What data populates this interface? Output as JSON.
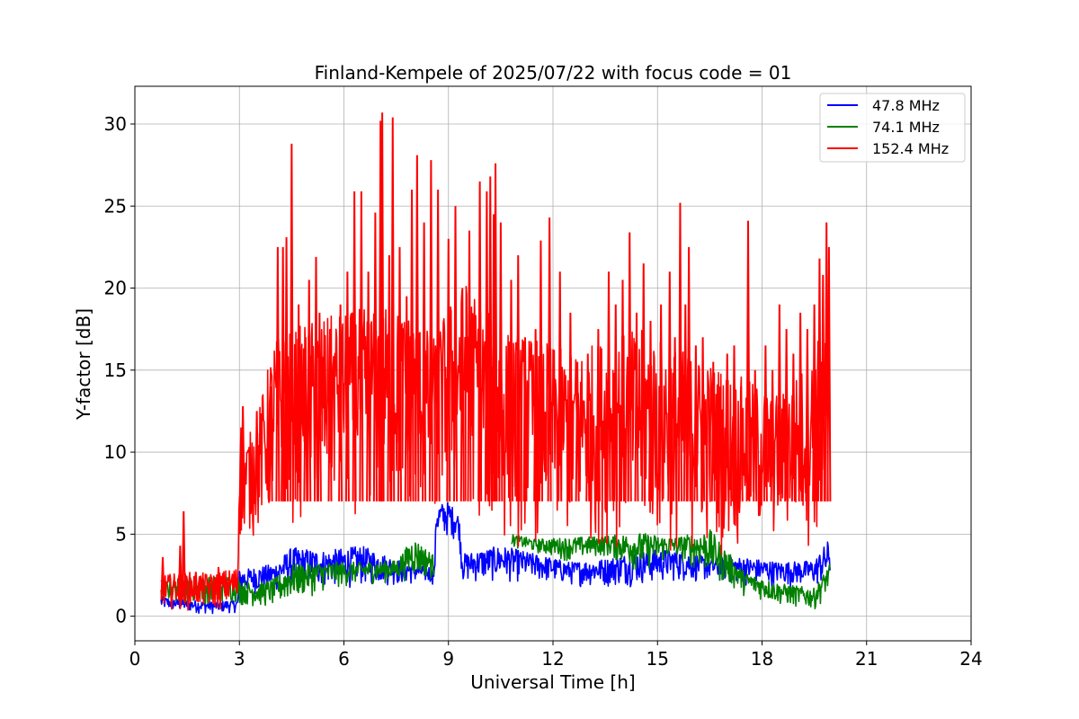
{
  "chart_data": {
    "type": "line",
    "title": "Finland-Kempele of 2025/07/22 with focus code = 01",
    "xlabel": "Universal Time [h]",
    "ylabel": "Y-factor [dB]",
    "xlim": [
      0,
      24
    ],
    "ylim": [
      -1.5,
      32.3
    ],
    "xticks": [
      0,
      3,
      6,
      9,
      12,
      15,
      18,
      21,
      24
    ],
    "xtick_labels": [
      "0",
      "3",
      "6",
      "9",
      "12",
      "15",
      "18",
      "21",
      "24"
    ],
    "yticks": [
      0,
      5,
      10,
      15,
      20,
      25,
      30
    ],
    "ytick_labels": [
      "0",
      "5",
      "10",
      "15",
      "20",
      "25",
      "30"
    ],
    "grid": true,
    "legend_position": "top-right",
    "series": [
      {
        "name": " 47.8 MHz",
        "color": "#0000ff",
        "segments": [
          {
            "x": [
              0.75,
              1.5,
              2.2,
              2.95,
              3.0,
              4.0,
              4.5,
              5.5,
              6.5,
              7.5,
              8.6,
              8.65,
              9.0,
              9.3,
              9.4,
              10.5,
              11.5,
              12.5,
              13.5,
              14.5,
              15.5,
              16.5,
              17.5,
              18.5,
              19.5,
              19.95
            ],
            "lo": [
              0.3,
              0.2,
              0.1,
              0.2,
              1.2,
              1.4,
              1.5,
              1.6,
              1.7,
              1.8,
              1.9,
              4.6,
              4.7,
              4.6,
              1.9,
              2.0,
              2.0,
              1.8,
              1.7,
              1.8,
              2.0,
              2.0,
              1.8,
              1.8,
              1.7,
              1.7
            ],
            "hi": [
              1.2,
              1.0,
              0.9,
              1.0,
              2.8,
              3.2,
              4.2,
              4.0,
              4.3,
              3.5,
              3.0,
              6.8,
              7.0,
              6.2,
              3.8,
              4.3,
              3.8,
              3.3,
              3.5,
              4.0,
              4.1,
              3.6,
              3.6,
              3.3,
              3.4,
              4.8
            ]
          }
        ]
      },
      {
        "name": " 74.1 MHz",
        "color": "#008000",
        "segments": [
          {
            "x": [
              0.75,
              1.5,
              2.2,
              2.95,
              3.0,
              3.5,
              4.0,
              4.5,
              5.5,
              6.5,
              7.5,
              8.0,
              8.6
            ],
            "lo": [
              0.8,
              0.7,
              0.7,
              0.7,
              0.6,
              0.5,
              0.4,
              0.8,
              1.5,
              1.9,
              2.0,
              2.2,
              2.2
            ],
            "hi": [
              2.1,
              2.4,
              2.4,
              2.5,
              2.2,
              2.0,
              2.3,
              3.2,
              3.3,
              3.3,
              3.4,
              4.8,
              3.7
            ]
          },
          {
            "x": [
              10.8,
              11.5,
              12.5,
              13.5,
              14.5,
              15.5,
              16.5,
              17.5,
              18.5,
              19.5,
              19.95
            ],
            "lo": [
              4.2,
              3.8,
              3.3,
              3.6,
              2.5,
              3.5,
              2.2,
              1.2,
              0.6,
              0.3,
              1.5
            ],
            "hi": [
              5.0,
              4.7,
              4.8,
              4.9,
              5.1,
              4.8,
              5.3,
              2.7,
              2.0,
              1.7,
              3.2
            ]
          }
        ]
      },
      {
        "name": "152.4 MHz",
        "color": "#ff0000",
        "segments": [
          {
            "x": [
              0.75,
              1.5,
              2.2,
              2.95,
              3.0,
              3.5,
              4.0,
              5.0,
              6.0,
              7.0,
              8.0,
              8.6,
              9.0,
              9.5,
              10.5,
              11.5,
              12.5,
              13.5,
              14.5,
              15.5,
              16.5,
              17.5,
              18.5,
              19.5,
              19.95
            ],
            "lo": [
              0.4,
              0.3,
              0.2,
              0.3,
              4.3,
              4.5,
              5.0,
              5.5,
              5.8,
              6.0,
              5.7,
              5.2,
              6.5,
              5.8,
              3.5,
              4.0,
              3.5,
              4.0,
              3.5,
              3.0,
              3.5,
              3.5,
              4.0,
              3.8,
              3.0
            ],
            "hi": [
              2.5,
              2.7,
              2.6,
              3.0,
              10.0,
              12.0,
              17.0,
              18.0,
              18.5,
              19.0,
              18.5,
              17.0,
              19.0,
              20.5,
              17.5,
              17.0,
              16.0,
              17.0,
              17.5,
              16.5,
              15.5,
              14.5,
              13.5,
              16.0,
              20.5
            ]
          },
          {
            "x": [
              19.97
            ],
            "lo": [
              6.0
            ],
            "hi": [
              20.5
            ]
          }
        ],
        "spikes": [
          [
            0.8,
            3.6
          ],
          [
            1.3,
            4.3
          ],
          [
            1.4,
            6.4
          ],
          [
            1.75,
            2.7
          ],
          [
            2.4,
            3.0
          ],
          [
            3.05,
            11.5
          ],
          [
            3.1,
            12.8
          ],
          [
            3.5,
            12.5
          ],
          [
            3.9,
            14.0
          ],
          [
            4.1,
            22.5
          ],
          [
            4.25,
            22.5
          ],
          [
            4.35,
            23.1
          ],
          [
            4.5,
            28.8
          ],
          [
            4.7,
            19.0
          ],
          [
            4.9,
            17.0
          ],
          [
            5.0,
            20.5
          ],
          [
            5.2,
            21.9
          ],
          [
            5.3,
            18.5
          ],
          [
            5.6,
            17.5
          ],
          [
            5.9,
            19.0
          ],
          [
            6.1,
            21.0
          ],
          [
            6.3,
            25.9
          ],
          [
            6.5,
            25.9
          ],
          [
            6.7,
            21.0
          ],
          [
            6.9,
            24.6
          ],
          [
            7.05,
            30.2
          ],
          [
            7.1,
            30.7
          ],
          [
            7.3,
            22.0
          ],
          [
            7.4,
            30.4
          ],
          [
            7.6,
            22.5
          ],
          [
            7.8,
            19.5
          ],
          [
            7.95,
            26.0
          ],
          [
            8.1,
            28.1
          ],
          [
            8.3,
            24.0
          ],
          [
            8.5,
            27.8
          ],
          [
            8.7,
            26.0
          ],
          [
            9.0,
            23.0
          ],
          [
            9.2,
            25.0
          ],
          [
            9.4,
            20.0
          ],
          [
            9.6,
            23.5
          ],
          [
            9.9,
            26.5
          ],
          [
            10.1,
            25.9
          ],
          [
            10.2,
            26.8
          ],
          [
            10.3,
            24.5
          ],
          [
            10.35,
            27.6
          ],
          [
            10.5,
            24.0
          ],
          [
            10.8,
            20.5
          ],
          [
            11.0,
            22.0
          ],
          [
            11.2,
            17.0
          ],
          [
            11.5,
            17.5
          ],
          [
            11.65,
            22.9
          ],
          [
            11.9,
            24.3
          ],
          [
            12.2,
            21.0
          ],
          [
            12.5,
            18.5
          ],
          [
            12.7,
            15.5
          ],
          [
            13.0,
            16.0
          ],
          [
            13.3,
            17.5
          ],
          [
            13.6,
            21.0
          ],
          [
            13.8,
            19.0
          ],
          [
            14.0,
            20.5
          ],
          [
            14.2,
            23.4
          ],
          [
            14.4,
            18.5
          ],
          [
            14.6,
            21.5
          ],
          [
            14.8,
            18.0
          ],
          [
            15.1,
            19.0
          ],
          [
            15.35,
            21.0
          ],
          [
            15.5,
            17.0
          ],
          [
            15.65,
            25.2
          ],
          [
            15.8,
            19.0
          ],
          [
            15.9,
            22.5
          ],
          [
            16.1,
            16.5
          ],
          [
            16.3,
            17.0
          ],
          [
            16.6,
            15.5
          ],
          [
            16.8,
            14.0
          ],
          [
            17.0,
            16.0
          ],
          [
            17.2,
            16.5
          ],
          [
            17.4,
            14.0
          ],
          [
            17.6,
            24.1
          ],
          [
            17.8,
            15.0
          ],
          [
            18.1,
            16.5
          ],
          [
            18.3,
            15.0
          ],
          [
            18.5,
            19.0
          ],
          [
            18.7,
            17.5
          ],
          [
            18.9,
            16.0
          ],
          [
            19.1,
            18.5
          ],
          [
            19.3,
            17.5
          ],
          [
            19.5,
            19.0
          ],
          [
            19.65,
            21.8
          ],
          [
            19.75,
            20.8
          ],
          [
            19.85,
            24.0
          ],
          [
            19.92,
            22.5
          ]
        ]
      }
    ]
  }
}
